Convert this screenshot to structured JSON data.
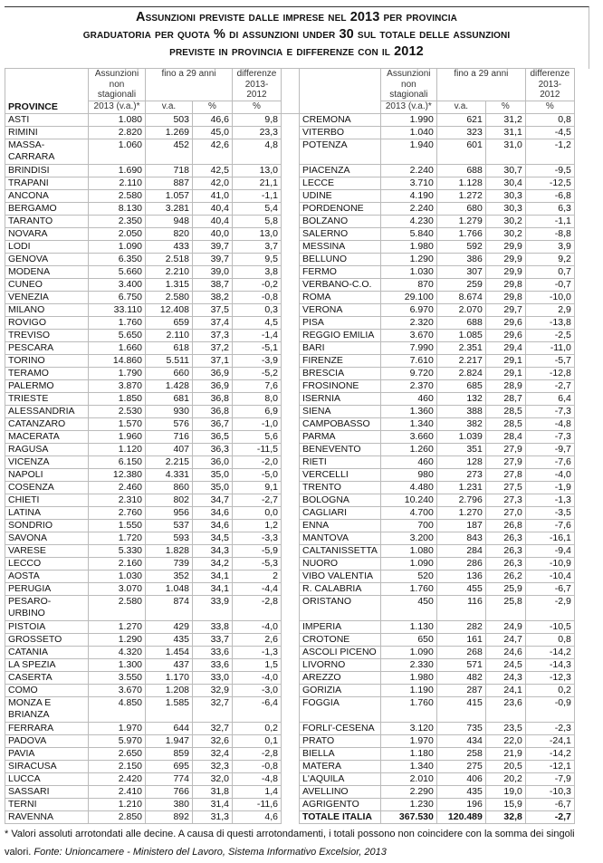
{
  "title": {
    "line1": "Assunzioni previste dalle imprese nel 2013 per provincia",
    "line2": "graduatoria per quota % di assunzioni under 30 sul totale delle assunzioni",
    "line3": "previste in provincia e differenze con il 2012"
  },
  "headers": {
    "province": "PROVINCE",
    "assunzioni": "Assunzioni non stagionali",
    "assunzioni_unit": "2013 (v.a.)*",
    "fino29": "fino a 29 anni",
    "va": "v.a.",
    "pct": "%",
    "differenze": "differenze 2013-2012",
    "diff_unit": "%"
  },
  "rows_left": [
    [
      "ASTI",
      "1.080",
      "503",
      "46,6",
      "9,8"
    ],
    [
      "RIMINI",
      "2.820",
      "1.269",
      "45,0",
      "23,3"
    ],
    [
      "MASSA-CARRARA",
      "1.060",
      "452",
      "42,6",
      "4,8"
    ],
    [
      "BRINDISI",
      "1.690",
      "718",
      "42,5",
      "13,0"
    ],
    [
      "TRAPANI",
      "2.110",
      "887",
      "42,0",
      "21,1"
    ],
    [
      "ANCONA",
      "2.580",
      "1.057",
      "41,0",
      "-1,1"
    ],
    [
      "BERGAMO",
      "8.130",
      "3.281",
      "40,4",
      "5,4"
    ],
    [
      "TARANTO",
      "2.350",
      "948",
      "40,4",
      "5,8"
    ],
    [
      "NOVARA",
      "2.050",
      "820",
      "40,0",
      "13,0"
    ],
    [
      "LODI",
      "1.090",
      "433",
      "39,7",
      "3,7"
    ],
    [
      "GENOVA",
      "6.350",
      "2.518",
      "39,7",
      "9,5"
    ],
    [
      "MODENA",
      "5.660",
      "2.210",
      "39,0",
      "3,8"
    ],
    [
      "CUNEO",
      "3.400",
      "1.315",
      "38,7",
      "-0,2"
    ],
    [
      "VENEZIA",
      "6.750",
      "2.580",
      "38,2",
      "-0,8"
    ],
    [
      "MILANO",
      "33.110",
      "12.408",
      "37,5",
      "0,3"
    ],
    [
      "ROVIGO",
      "1.760",
      "659",
      "37,4",
      "4,5"
    ],
    [
      "TREVISO",
      "5.650",
      "2.110",
      "37,3",
      "-1,4"
    ],
    [
      "PESCARA",
      "1.660",
      "618",
      "37,2",
      "-5,1"
    ],
    [
      "TORINO",
      "14.860",
      "5.511",
      "37,1",
      "-3,9"
    ],
    [
      "TERAMO",
      "1.790",
      "660",
      "36,9",
      "-5,2"
    ],
    [
      "PALERMO",
      "3.870",
      "1.428",
      "36,9",
      "7,6"
    ],
    [
      "TRIESTE",
      "1.850",
      "681",
      "36,8",
      "8,0"
    ],
    [
      "ALESSANDRIA",
      "2.530",
      "930",
      "36,8",
      "6,9"
    ],
    [
      "CATANZARO",
      "1.570",
      "576",
      "36,7",
      "-1,0"
    ],
    [
      "MACERATA",
      "1.960",
      "716",
      "36,5",
      "5,6"
    ],
    [
      "RAGUSA",
      "1.120",
      "407",
      "36,3",
      "-11,5"
    ],
    [
      "VICENZA",
      "6.150",
      "2.215",
      "36,0",
      "-2,0"
    ],
    [
      "NAPOLI",
      "12.380",
      "4.331",
      "35,0",
      "-5,0"
    ],
    [
      "COSENZA",
      "2.460",
      "860",
      "35,0",
      "9,1"
    ],
    [
      "CHIETI",
      "2.310",
      "802",
      "34,7",
      "-2,7"
    ],
    [
      "LATINA",
      "2.760",
      "956",
      "34,6",
      "0,0"
    ],
    [
      "SONDRIO",
      "1.550",
      "537",
      "34,6",
      "1,2"
    ],
    [
      "SAVONA",
      "1.720",
      "593",
      "34,5",
      "-3,3"
    ],
    [
      "VARESE",
      "5.330",
      "1.828",
      "34,3",
      "-5,9"
    ],
    [
      "LECCO",
      "2.160",
      "739",
      "34,2",
      "-5,3"
    ],
    [
      "AOSTA",
      "1.030",
      "352",
      "34,1",
      "2"
    ],
    [
      "PERUGIA",
      "3.070",
      "1.048",
      "34,1",
      "-4,4"
    ],
    [
      "PESARO-URBINO",
      "2.580",
      "874",
      "33,9",
      "-2,8"
    ],
    [
      "PISTOIA",
      "1.270",
      "429",
      "33,8",
      "-4,0"
    ],
    [
      "GROSSETO",
      "1.290",
      "435",
      "33,7",
      "2,6"
    ],
    [
      "CATANIA",
      "4.320",
      "1.454",
      "33,6",
      "-1,3"
    ],
    [
      "LA SPEZIA",
      "1.300",
      "437",
      "33,6",
      "1,5"
    ],
    [
      "CASERTA",
      "3.550",
      "1.170",
      "33,0",
      "-4,0"
    ],
    [
      "COMO",
      "3.670",
      "1.208",
      "32,9",
      "-3,0"
    ],
    [
      "MONZA E BRIANZA",
      "4.850",
      "1.585",
      "32,7",
      "-6,4"
    ],
    [
      "FERRARA",
      "1.970",
      "644",
      "32,7",
      "0,2"
    ],
    [
      "PADOVA",
      "5.970",
      "1.947",
      "32,6",
      "0,1"
    ],
    [
      "PAVIA",
      "2.650",
      "859",
      "32,4",
      "-2,8"
    ],
    [
      "SIRACUSA",
      "2.150",
      "695",
      "32,3",
      "-0,8"
    ],
    [
      "LUCCA",
      "2.420",
      "774",
      "32,0",
      "-4,8"
    ],
    [
      "SASSARI",
      "2.410",
      "766",
      "31,8",
      "1,4"
    ],
    [
      "TERNI",
      "1.210",
      "380",
      "31,4",
      "-11,6"
    ],
    [
      "RAVENNA",
      "2.850",
      "892",
      "31,3",
      "4,6"
    ]
  ],
  "rows_right": [
    [
      "CREMONA",
      "1.990",
      "621",
      "31,2",
      "0,8"
    ],
    [
      "VITERBO",
      "1.040",
      "323",
      "31,1",
      "-4,5"
    ],
    [
      "POTENZA",
      "1.940",
      "601",
      "31,0",
      "-1,2"
    ],
    [
      "PIACENZA",
      "2.240",
      "688",
      "30,7",
      "-9,5"
    ],
    [
      "LECCE",
      "3.710",
      "1.128",
      "30,4",
      "-12,5"
    ],
    [
      "UDINE",
      "4.190",
      "1.272",
      "30,3",
      "-6,8"
    ],
    [
      "PORDENONE",
      "2.240",
      "680",
      "30,3",
      "6,3"
    ],
    [
      "BOLZANO",
      "4.230",
      "1.279",
      "30,2",
      "-1,1"
    ],
    [
      "SALERNO",
      "5.840",
      "1.766",
      "30,2",
      "-8,8"
    ],
    [
      "MESSINA",
      "1.980",
      "592",
      "29,9",
      "3,9"
    ],
    [
      "BELLUNO",
      "1.290",
      "386",
      "29,9",
      "9,2"
    ],
    [
      "FERMO",
      "1.030",
      "307",
      "29,9",
      "0,7"
    ],
    [
      "VERBANO-C.O.",
      "870",
      "259",
      "29,8",
      "-0,7"
    ],
    [
      "ROMA",
      "29.100",
      "8.674",
      "29,8",
      "-10,0"
    ],
    [
      "VERONA",
      "6.970",
      "2.070",
      "29,7",
      "2,9"
    ],
    [
      "PISA",
      "2.320",
      "688",
      "29,6",
      "-13,8"
    ],
    [
      "REGGIO EMILIA",
      "3.670",
      "1.085",
      "29,6",
      "-2,5"
    ],
    [
      "BARI",
      "7.990",
      "2.351",
      "29,4",
      "-11,0"
    ],
    [
      "FIRENZE",
      "7.610",
      "2.217",
      "29,1",
      "-5,7"
    ],
    [
      "BRESCIA",
      "9.720",
      "2.824",
      "29,1",
      "-12,8"
    ],
    [
      "FROSINONE",
      "2.370",
      "685",
      "28,9",
      "-2,7"
    ],
    [
      "ISERNIA",
      "460",
      "132",
      "28,7",
      "6,4"
    ],
    [
      "SIENA",
      "1.360",
      "388",
      "28,5",
      "-7,3"
    ],
    [
      "CAMPOBASSO",
      "1.340",
      "382",
      "28,5",
      "-4,8"
    ],
    [
      "PARMA",
      "3.660",
      "1.039",
      "28,4",
      "-7,3"
    ],
    [
      "BENEVENTO",
      "1.260",
      "351",
      "27,9",
      "-9,7"
    ],
    [
      "RIETI",
      "460",
      "128",
      "27,9",
      "-7,6"
    ],
    [
      "VERCELLI",
      "980",
      "273",
      "27,8",
      "-4,0"
    ],
    [
      "TRENTO",
      "4.480",
      "1.231",
      "27,5",
      "-1,9"
    ],
    [
      "BOLOGNA",
      "10.240",
      "2.796",
      "27,3",
      "-1,3"
    ],
    [
      "CAGLIARI",
      "4.700",
      "1.270",
      "27,0",
      "-3,5"
    ],
    [
      "ENNA",
      "700",
      "187",
      "26,8",
      "-7,6"
    ],
    [
      "MANTOVA",
      "3.200",
      "843",
      "26,3",
      "-16,1"
    ],
    [
      "CALTANISSETTA",
      "1.080",
      "284",
      "26,3",
      "-9,4"
    ],
    [
      "NUORO",
      "1.090",
      "286",
      "26,3",
      "-10,9"
    ],
    [
      "VIBO VALENTIA",
      "520",
      "136",
      "26,2",
      "-10,4"
    ],
    [
      "R. CALABRIA",
      "1.760",
      "455",
      "25,9",
      "-6,7"
    ],
    [
      "ORISTANO",
      "450",
      "116",
      "25,8",
      "-2,9"
    ],
    [
      "IMPERIA",
      "1.130",
      "282",
      "24,9",
      "-10,5"
    ],
    [
      "CROTONE",
      "650",
      "161",
      "24,7",
      "0,8"
    ],
    [
      "ASCOLI PICENO",
      "1.090",
      "268",
      "24,6",
      "-14,2"
    ],
    [
      "LIVORNO",
      "2.330",
      "571",
      "24,5",
      "-14,3"
    ],
    [
      "AREZZO",
      "1.980",
      "482",
      "24,3",
      "-12,3"
    ],
    [
      "GORIZIA",
      "1.190",
      "287",
      "24,1",
      "0,2"
    ],
    [
      "FOGGIA",
      "1.760",
      "415",
      "23,6",
      "-0,9"
    ],
    [
      "FORLI'-CESENA",
      "3.120",
      "735",
      "23,5",
      "-2,3"
    ],
    [
      "PRATO",
      "1.970",
      "434",
      "22,0",
      "-24,1"
    ],
    [
      "BIELLA",
      "1.180",
      "258",
      "21,9",
      "-14,2"
    ],
    [
      "MATERA",
      "1.340",
      "275",
      "20,5",
      "-12,1"
    ],
    [
      "L'AQUILA",
      "2.010",
      "406",
      "20,2",
      "-7,9"
    ],
    [
      "AVELLINO",
      "2.290",
      "435",
      "19,0",
      "-10,3"
    ],
    [
      "AGRIGENTO",
      "1.230",
      "196",
      "15,9",
      "-6,7"
    ],
    [
      "TOTALE ITALIA",
      "367.530",
      "120.489",
      "32,8",
      "-2,7"
    ]
  ],
  "footnote": {
    "note": "* Valori assoluti arrotondati alle decine. A causa di questi arrotondamenti, i totali possono non coincidere con la somma dei singoli valori.",
    "source_label": "Fonte:",
    "source": "Unioncamere - Ministero del Lavoro, Sistema Informativo Excelsior, 2013"
  }
}
